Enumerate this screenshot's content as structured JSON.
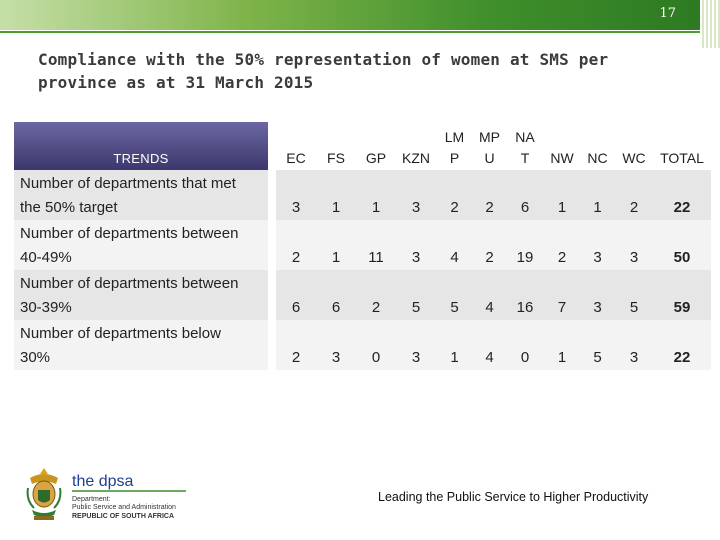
{
  "slide": {
    "page_number": "17",
    "title_line1": "Compliance with the 50% representation of women at SMS per",
    "title_line2": "province as at 31 March 2015"
  },
  "table": {
    "headers": {
      "trends": "TRENDS",
      "ec": "EC",
      "fs": "FS",
      "gp": "GP",
      "kzn": "KZN",
      "lmp_1": "LM",
      "lmp_2": "P",
      "mpu_1": "MP",
      "mpu_2": "U",
      "nat_1": "NA",
      "nat_2": "T",
      "nw": "NW",
      "nc": "NC",
      "wc": "WC",
      "total": "TOTAL"
    },
    "rows": [
      {
        "label_line1": "Number of departments that met",
        "label_line2": "the 50% target",
        "ec": "3",
        "fs": "1",
        "gp": "1",
        "kzn": "3",
        "lmp": "2",
        "mpu": "2",
        "nat": "6",
        "nw": "1",
        "nc": "1",
        "wc": "2",
        "total": "22"
      },
      {
        "label_line1": "Number of departments between",
        "label_line2": "40-49%",
        "ec": "2",
        "fs": "1",
        "gp": "11",
        "kzn": "3",
        "lmp": "4",
        "mpu": "2",
        "nat": "19",
        "nw": "2",
        "nc": "3",
        "wc": "3",
        "total": "50"
      },
      {
        "label_line1": "Number of departments between",
        "label_line2": "30-39%",
        "ec": "6",
        "fs": "6",
        "gp": "2",
        "kzn": "5",
        "lmp": "5",
        "mpu": "4",
        "nat": "16",
        "nw": "7",
        "nc": "3",
        "wc": "5",
        "total": "59"
      },
      {
        "label_line1": "Number of departments below",
        "label_line2": "30%",
        "ec": "2",
        "fs": "3",
        "gp": "0",
        "kzn": "3",
        "lmp": "1",
        "mpu": "4",
        "nat": "0",
        "nw": "1",
        "nc": "5",
        "wc": "3",
        "total": "22"
      }
    ]
  },
  "footer": {
    "logo_name": "the dpsa",
    "logo_line1": "Department:",
    "logo_line2": "Public Service and Administration",
    "logo_line3": "REPUBLIC OF SOUTH AFRICA",
    "tagline": "Leading the Public Service to Higher Productivity"
  },
  "colors": {
    "banner_green": "#3f8f2c",
    "header_purple": "#4a4680",
    "row_odd": "#e6e6e6",
    "row_even": "#f3f3f3"
  },
  "icons": [
    "coat-of-arms-icon"
  ]
}
